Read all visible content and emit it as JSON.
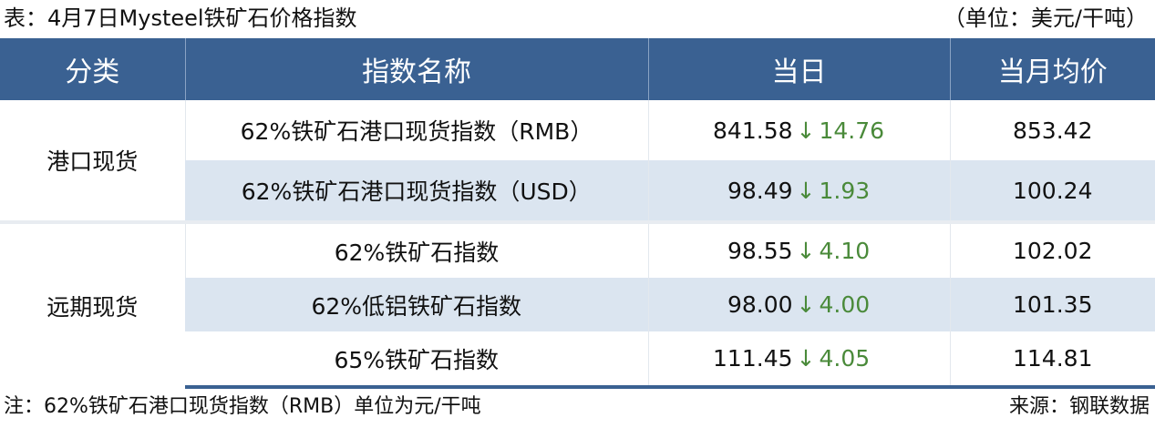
{
  "title": "表：4月7日Mysteel铁矿石价格指数",
  "unit": "（单位：美元/干吨）",
  "headers": [
    "分类",
    "指数名称",
    "当日",
    "当月均价"
  ],
  "groups": [
    {
      "label": "港口现货"
    },
    {
      "label": "远期现货"
    }
  ],
  "rows": [
    {
      "name": "62%铁矿石港口现货指数（RMB）",
      "value": "841.58",
      "arrow": "↓",
      "change": "14.76",
      "avg": "853.42"
    },
    {
      "name": "62%铁矿石港口现货指数（USD）",
      "value": "98.49",
      "arrow": "↓",
      "change": "1.93",
      "avg": "100.24"
    },
    {
      "name": "62%铁矿石指数",
      "value": "98.55",
      "arrow": "↓",
      "change": "4.10",
      "avg": "102.02"
    },
    {
      "name": "62%低铝铁矿石指数",
      "value": "98.00",
      "arrow": "↓",
      "change": "4.00",
      "avg": "101.35"
    },
    {
      "name": "65%铁矿石指数",
      "value": "111.45",
      "arrow": "↓",
      "change": "4.05",
      "avg": "114.81"
    }
  ],
  "note": "注：62%铁矿石港口现货指数（RMB）单位为元/干吨",
  "source": "来源：钢联数据",
  "colors": {
    "header": "#3a6192",
    "shade": "#dbe5f0",
    "down": "#4a8a3a"
  }
}
